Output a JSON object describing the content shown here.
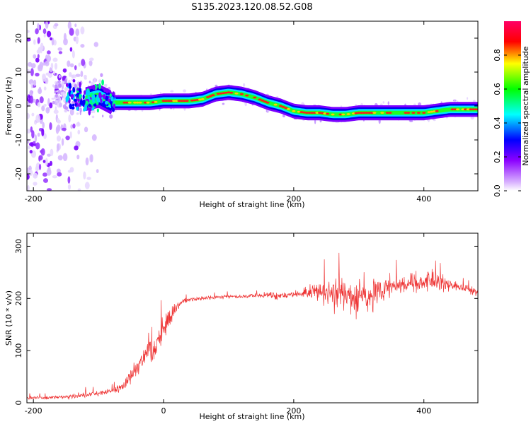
{
  "figure_title": "S135.2023.120.08.52.G08",
  "chart_data": [
    {
      "type": "heatmap",
      "title": "",
      "xlabel": "Height of straight line (km)",
      "ylabel": "Frequency (Hz)",
      "xlim": [
        -210,
        483
      ],
      "ylim": [
        -25,
        25
      ],
      "x_ticks": [
        -200,
        0,
        200,
        400
      ],
      "y_ticks": [
        -20,
        -10,
        0,
        10,
        20
      ],
      "colorbar": {
        "label": "Normalized spectral amplitude",
        "range": [
          0,
          1
        ],
        "ticks": [
          0.0,
          0.2,
          0.4,
          0.6,
          0.8
        ],
        "colormap": [
          "#ffffff",
          "#8b00ff",
          "#0000ff",
          "#00ffff",
          "#00ff00",
          "#ffff00",
          "#ff0000",
          "#ff00aa"
        ]
      },
      "ridge": {
        "x": [
          -200,
          -160,
          -140,
          -120,
          -100,
          -80,
          -60,
          -40,
          -20,
          0,
          20,
          40,
          60,
          80,
          100,
          120,
          140,
          160,
          180,
          200,
          220,
          240,
          260,
          280,
          300,
          320,
          340,
          360,
          380,
          400,
          420,
          440,
          460,
          483
        ],
        "freq_hz": [
          5,
          5,
          4,
          2,
          3,
          1,
          1,
          1,
          1,
          1.5,
          1.5,
          1.5,
          2,
          3.5,
          4,
          3.5,
          2.5,
          1,
          0,
          -1.5,
          -2,
          -2,
          -2.5,
          -2.5,
          -2,
          -2,
          -2,
          -2,
          -2,
          -2,
          -1.5,
          -1,
          -1,
          -1
        ]
      }
    },
    {
      "type": "line",
      "title": "",
      "xlabel": "Height of straight line (km)",
      "ylabel": "SNR (10 * v/v)",
      "xlim": [
        -210,
        483
      ],
      "ylim": [
        0,
        325
      ],
      "x_ticks": [
        -200,
        0,
        200,
        400
      ],
      "y_ticks": [
        0,
        100,
        200,
        300
      ],
      "series": [
        {
          "color": "#ee3333",
          "x": [
            -210,
            -180,
            -150,
            -120,
            -100,
            -80,
            -60,
            -40,
            -30,
            -20,
            -15,
            -10,
            0,
            10,
            20,
            30,
            40,
            60,
            80,
            100,
            120,
            140,
            160,
            170,
            180,
            200,
            220,
            240,
            260,
            280,
            300,
            320,
            340,
            360,
            380,
            400,
            420,
            440,
            460,
            483
          ],
          "mean": [
            10,
            10,
            11,
            14,
            18,
            22,
            35,
            70,
            95,
            105,
            100,
            120,
            140,
            165,
            185,
            195,
            198,
            200,
            202,
            204,
            204,
            205,
            206,
            208,
            206,
            208,
            210,
            215,
            210,
            205,
            205,
            205,
            215,
            225,
            230,
            232,
            232,
            228,
            220,
            212
          ],
          "spread": [
            5,
            5,
            5,
            10,
            8,
            8,
            15,
            30,
            40,
            50,
            55,
            40,
            40,
            30,
            15,
            8,
            6,
            6,
            6,
            6,
            6,
            6,
            8,
            15,
            8,
            8,
            15,
            35,
            45,
            55,
            60,
            50,
            40,
            30,
            28,
            28,
            25,
            18,
            12,
            10
          ]
        }
      ]
    }
  ]
}
